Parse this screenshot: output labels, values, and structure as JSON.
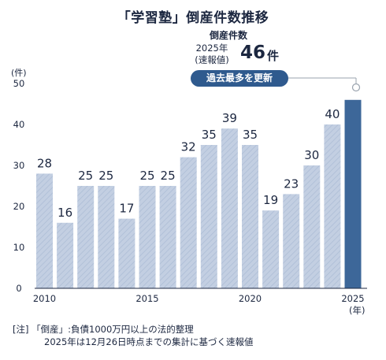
{
  "title": "「学習塾」倒産件数推移",
  "legend_label": "倒産件数",
  "latest": {
    "year_line1": "2025年",
    "year_line2": "(速報値)",
    "value": "46",
    "unit": "件",
    "badge": "過去最多を更新"
  },
  "y_unit": "(件)",
  "x_unit": "(年)",
  "note": {
    "line1": "[注] 「倒産」:負債1000万円以上の法的整理",
    "line2": "2025年は12月26日時点までの集計に基づく速報値"
  },
  "colors": {
    "bar": "#c3cfe2",
    "bar_hatch": "#a9b9d3",
    "highlight": "#3d6799",
    "badge": "#2f5a8e",
    "text": "#1c2740"
  },
  "chart_data": {
    "type": "bar",
    "categories": [
      "2010",
      "2011",
      "2012",
      "2013",
      "2014",
      "2015",
      "2016",
      "2017",
      "2018",
      "2019",
      "2020",
      "2021",
      "2022",
      "2023",
      "2024",
      "2025"
    ],
    "values": [
      28,
      16,
      25,
      25,
      17,
      25,
      25,
      32,
      35,
      39,
      35,
      19,
      23,
      30,
      40,
      46
    ],
    "data_labels": [
      "28",
      "16",
      "25",
      "25",
      "17",
      "25",
      "25",
      "32",
      "35",
      "39",
      "35",
      "19",
      "23",
      "30",
      "40",
      ""
    ],
    "x_tick_labels": [
      "2010",
      "",
      "",
      "",
      "",
      "2015",
      "",
      "",
      "",
      "",
      "2020",
      "",
      "",
      "",
      "",
      "2025"
    ],
    "y_ticks": [
      "0",
      "10",
      "20",
      "30",
      "40",
      "50"
    ],
    "ylim": [
      0,
      50
    ],
    "highlight_index": 15,
    "grid": false,
    "title": "「学習塾」倒産件数推移"
  }
}
